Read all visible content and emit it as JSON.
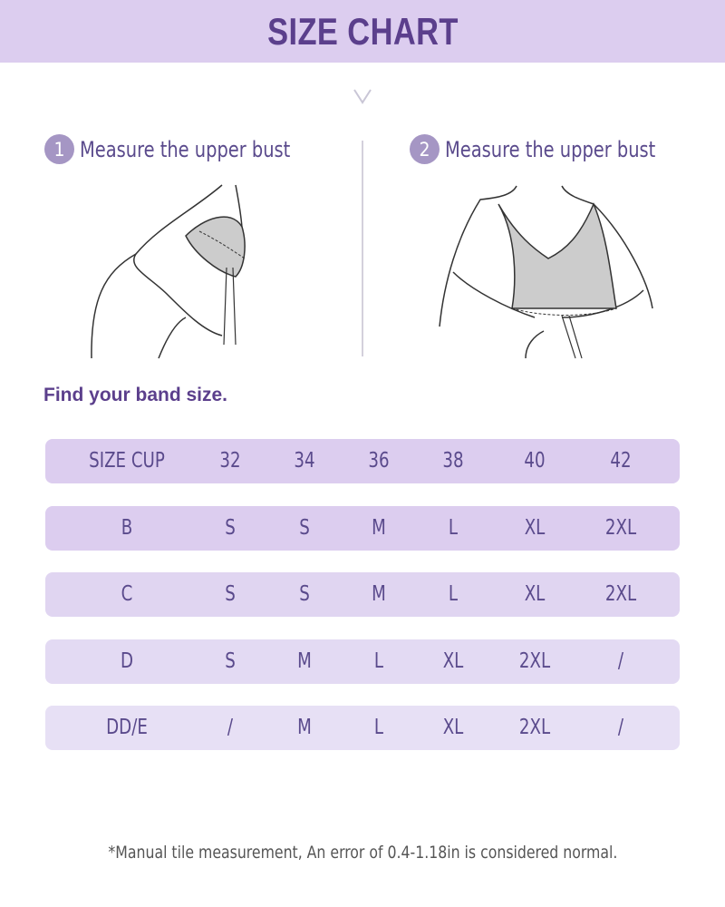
{
  "header": {
    "title": "SIZE CHART"
  },
  "steps": [
    {
      "number": "1",
      "label": "Measure the upper bust"
    },
    {
      "number": "2",
      "label": "Measure the upper bust"
    }
  ],
  "section_title": "Find your band size.",
  "table": {
    "header": [
      "SIZE CUP",
      "32",
      "34",
      "36",
      "38",
      "40",
      "42"
    ],
    "rows": [
      [
        "B",
        "S",
        "S",
        "M",
        "L",
        "XL",
        "2XL"
      ],
      [
        "C",
        "S",
        "S",
        "M",
        "L",
        "XL",
        "2XL"
      ],
      [
        "D",
        "S",
        "M",
        "L",
        "XL",
        "2XL",
        "/"
      ],
      [
        "DD/E",
        "/",
        "M",
        "L",
        "XL",
        "2XL",
        "/"
      ]
    ]
  },
  "footnote": "*Manual tile measurement, An error of 0.4-1.18in is considered normal.",
  "colors": {
    "banner": "#dccdef",
    "title": "#5b3f8c",
    "text": "#5a4a8c",
    "step_badge": "#a596c4"
  }
}
